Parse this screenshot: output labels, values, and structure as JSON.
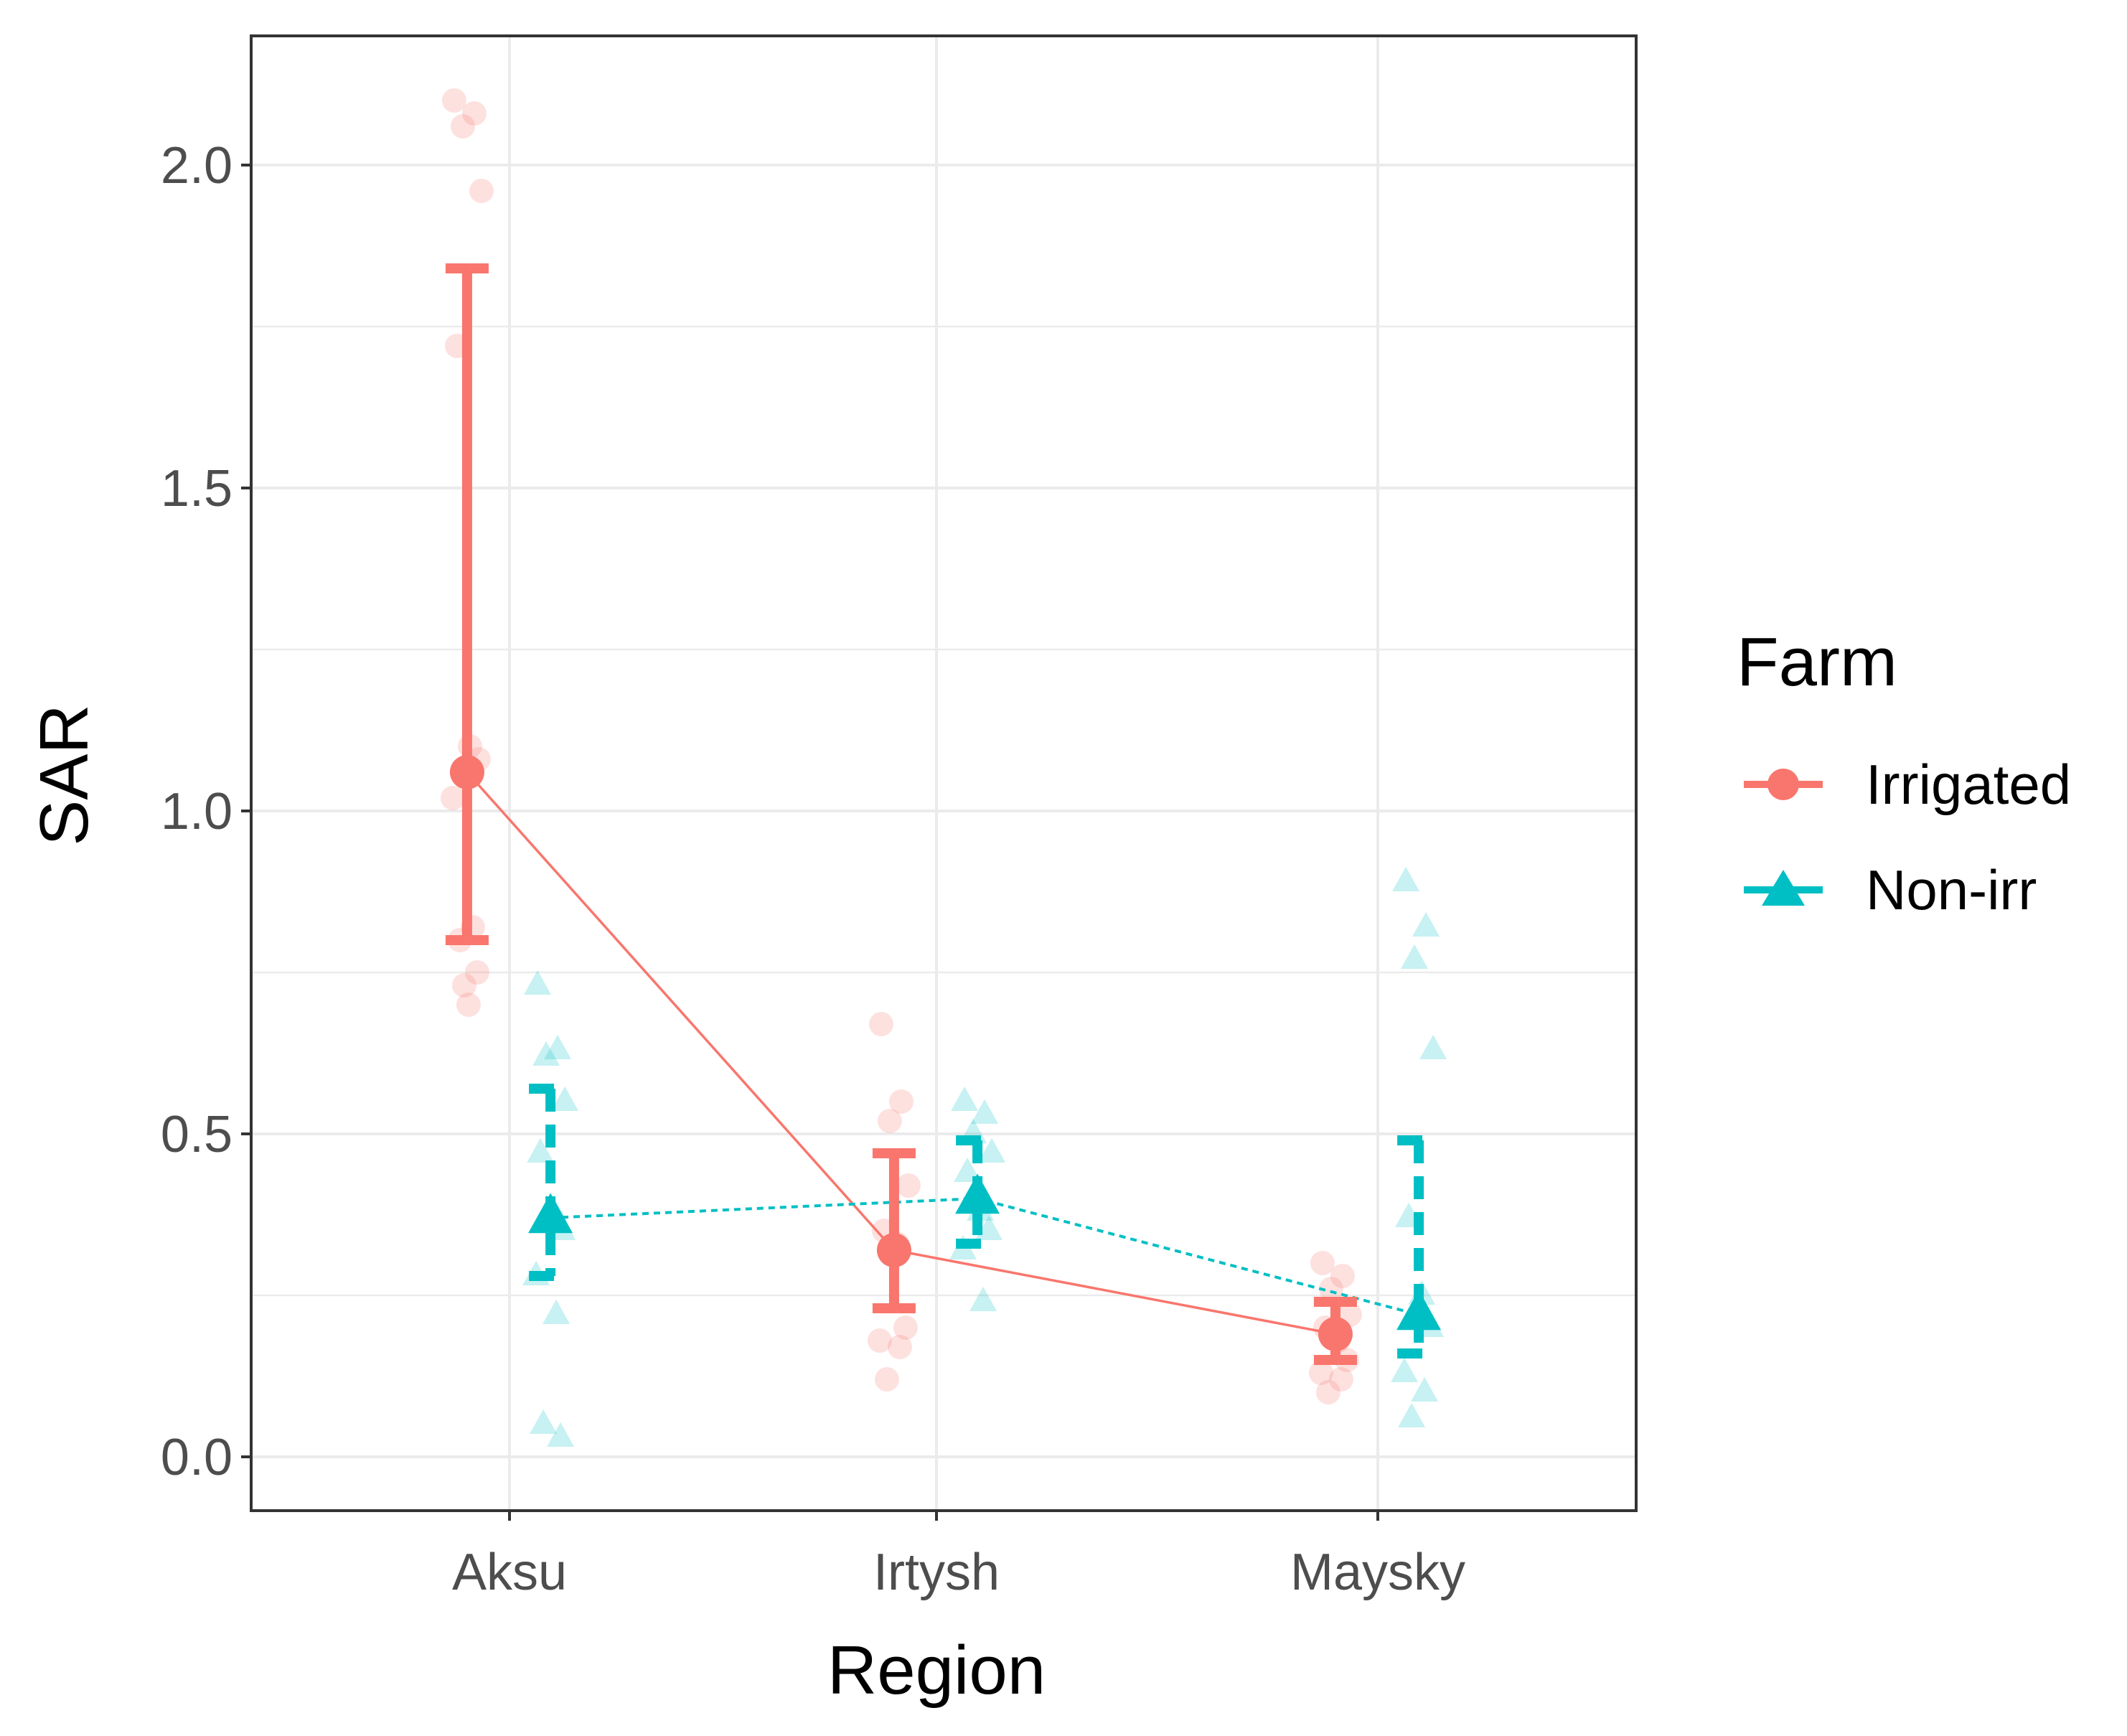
{
  "chart_data": {
    "type": "scatter",
    "title": "",
    "xlabel": "Region",
    "ylabel": "SAR",
    "categories": [
      "Aksu",
      "Irtysh",
      "Maysky"
    ],
    "ylim": [
      -0.08,
      2.2
    ],
    "y_ticks": [
      0.0,
      0.5,
      1.0,
      1.5,
      2.0
    ],
    "y_tick_labels": [
      "0.0",
      "0.5",
      "1.0",
      "1.5",
      "2.0"
    ],
    "grid": true,
    "legend": {
      "title": "Farm",
      "position": "right"
    },
    "series": [
      {
        "name": "Irrigated",
        "color": "#F8766D",
        "marker": "circle",
        "line_style": "solid",
        "means": [
          1.06,
          0.32,
          0.19
        ],
        "error_low": [
          0.8,
          0.23,
          0.15
        ],
        "error_high": [
          1.84,
          0.47,
          0.24
        ],
        "raw_points": [
          [
            2.1,
            2.08,
            2.06,
            1.96,
            1.72,
            1.1,
            1.08,
            1.02,
            0.82,
            0.8,
            0.75,
            0.73,
            0.7
          ],
          [
            0.67,
            0.55,
            0.52,
            0.42,
            0.35,
            0.33,
            0.2,
            0.18,
            0.17,
            0.12
          ],
          [
            0.3,
            0.28,
            0.26,
            0.22,
            0.2,
            0.18,
            0.15,
            0.13,
            0.12,
            0.1
          ]
        ]
      },
      {
        "name": "Non-irr",
        "color": "#00BFC4",
        "marker": "triangle",
        "line_style": "dotted",
        "means": [
          0.37,
          0.4,
          0.22
        ],
        "error_low": [
          0.28,
          0.33,
          0.16
        ],
        "error_high": [
          0.57,
          0.49,
          0.49
        ],
        "raw_points": [
          [
            0.73,
            0.63,
            0.62,
            0.55,
            0.47,
            0.38,
            0.35,
            0.28,
            0.22,
            0.05,
            0.03
          ],
          [
            0.55,
            0.53,
            0.5,
            0.47,
            0.44,
            0.38,
            0.35,
            0.32,
            0.24
          ],
          [
            0.89,
            0.82,
            0.77,
            0.63,
            0.37,
            0.25,
            0.2,
            0.13,
            0.1,
            0.06
          ]
        ]
      }
    ]
  }
}
